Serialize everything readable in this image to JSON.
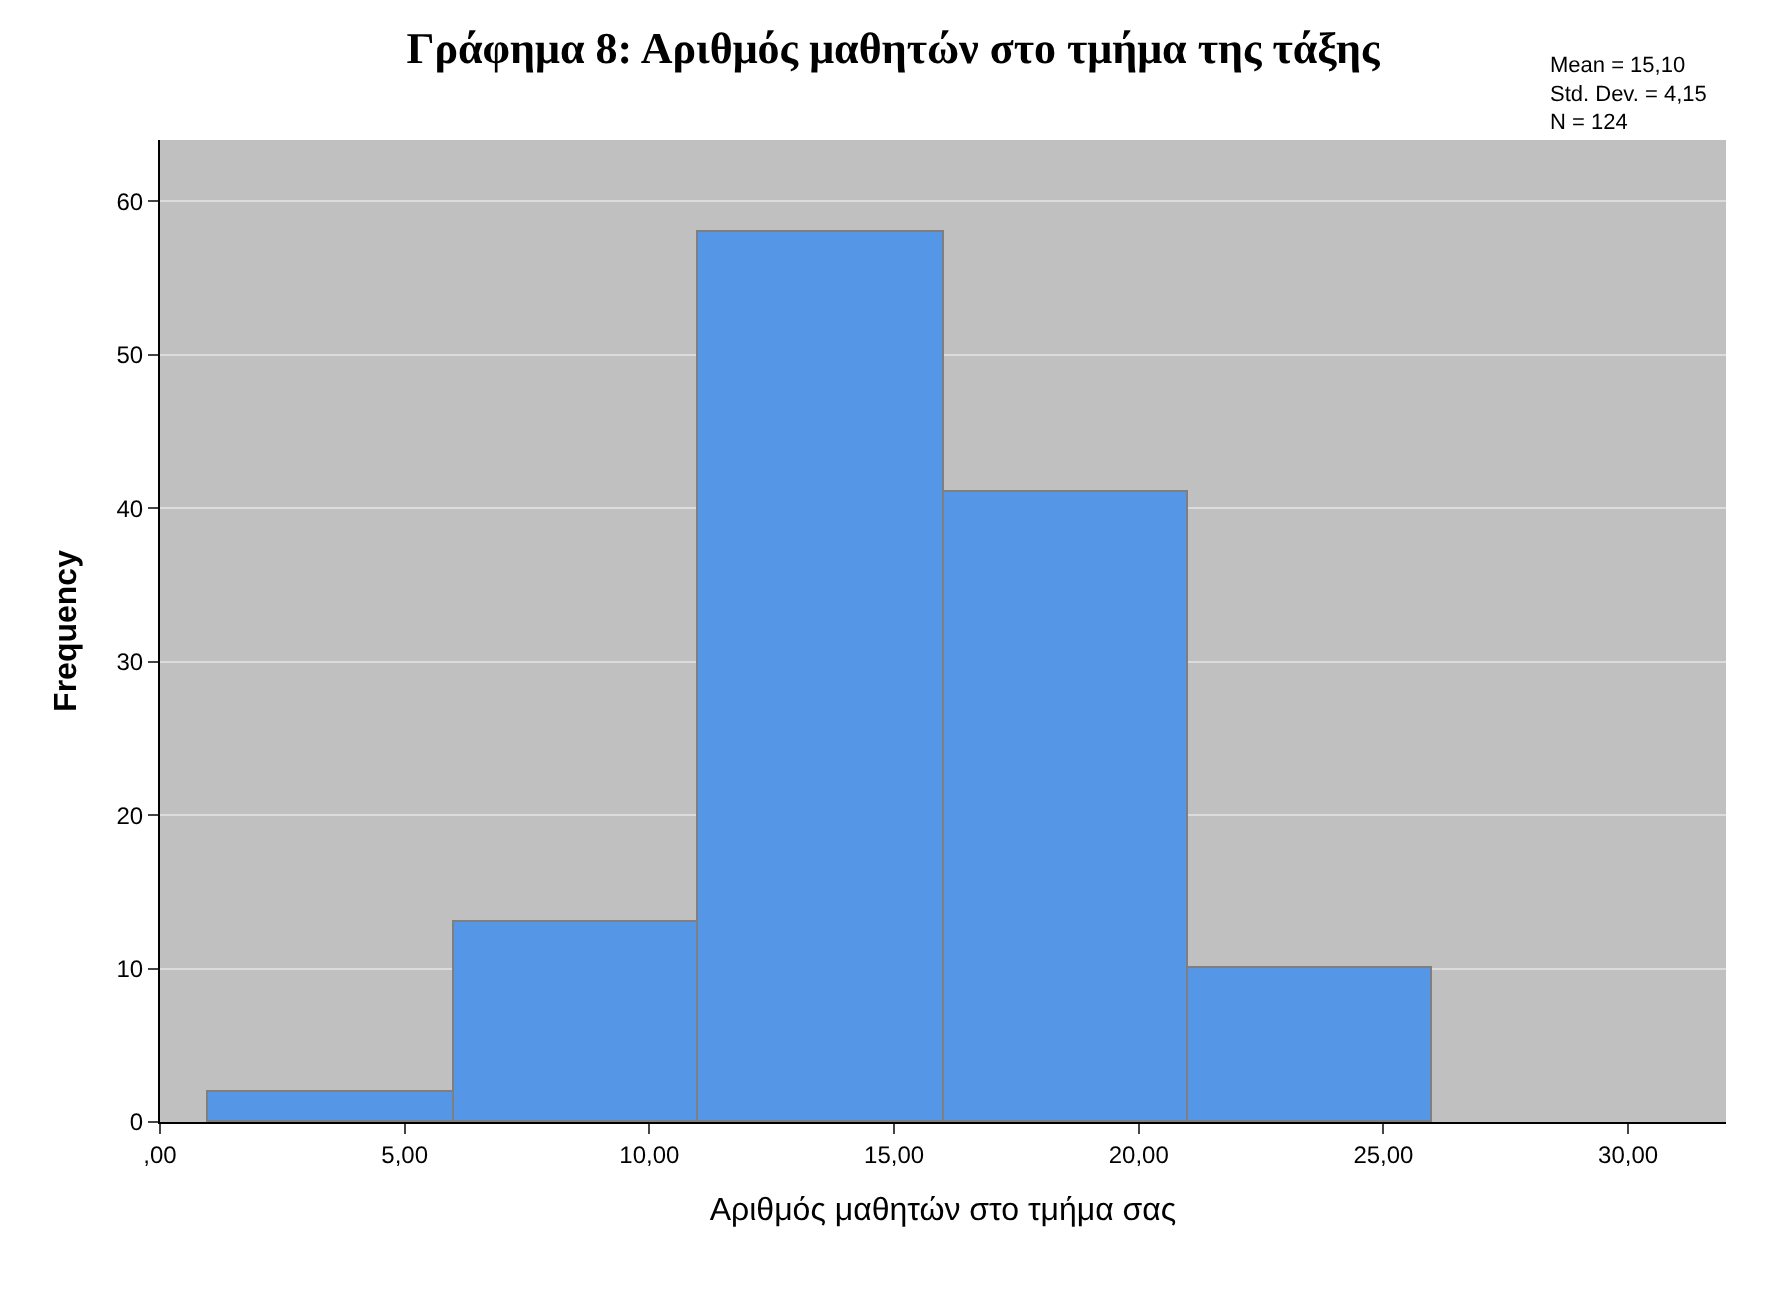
{
  "chart_data": {
    "type": "histogram",
    "title": "Γράφημα 8: Αριθμός μαθητών στο τμήμα της τάξης",
    "xlabel": "Αριθμός μαθητών στο τμήμα σας",
    "ylabel": "Frequency",
    "bins": [
      1,
      6,
      11,
      16,
      21,
      26
    ],
    "values": [
      2,
      13,
      58,
      41,
      10
    ],
    "color": "#5596e6",
    "xlim": [
      0,
      32
    ],
    "xticks": [
      {
        "value": 0,
        "label": ",00"
      },
      {
        "value": 5,
        "label": "5,00"
      },
      {
        "value": 10,
        "label": "10,00"
      },
      {
        "value": 15,
        "label": "15,00"
      },
      {
        "value": 20,
        "label": "20,00"
      },
      {
        "value": 25,
        "label": "25,00"
      },
      {
        "value": 30,
        "label": "30,00"
      }
    ],
    "ylim": [
      0,
      64
    ],
    "yticks": [
      0,
      10,
      20,
      30,
      40,
      50,
      60
    ],
    "grid": "y",
    "annotations": [
      "Mean = 15,10",
      "Std. Dev. = 4,15",
      "N = 124"
    ]
  }
}
